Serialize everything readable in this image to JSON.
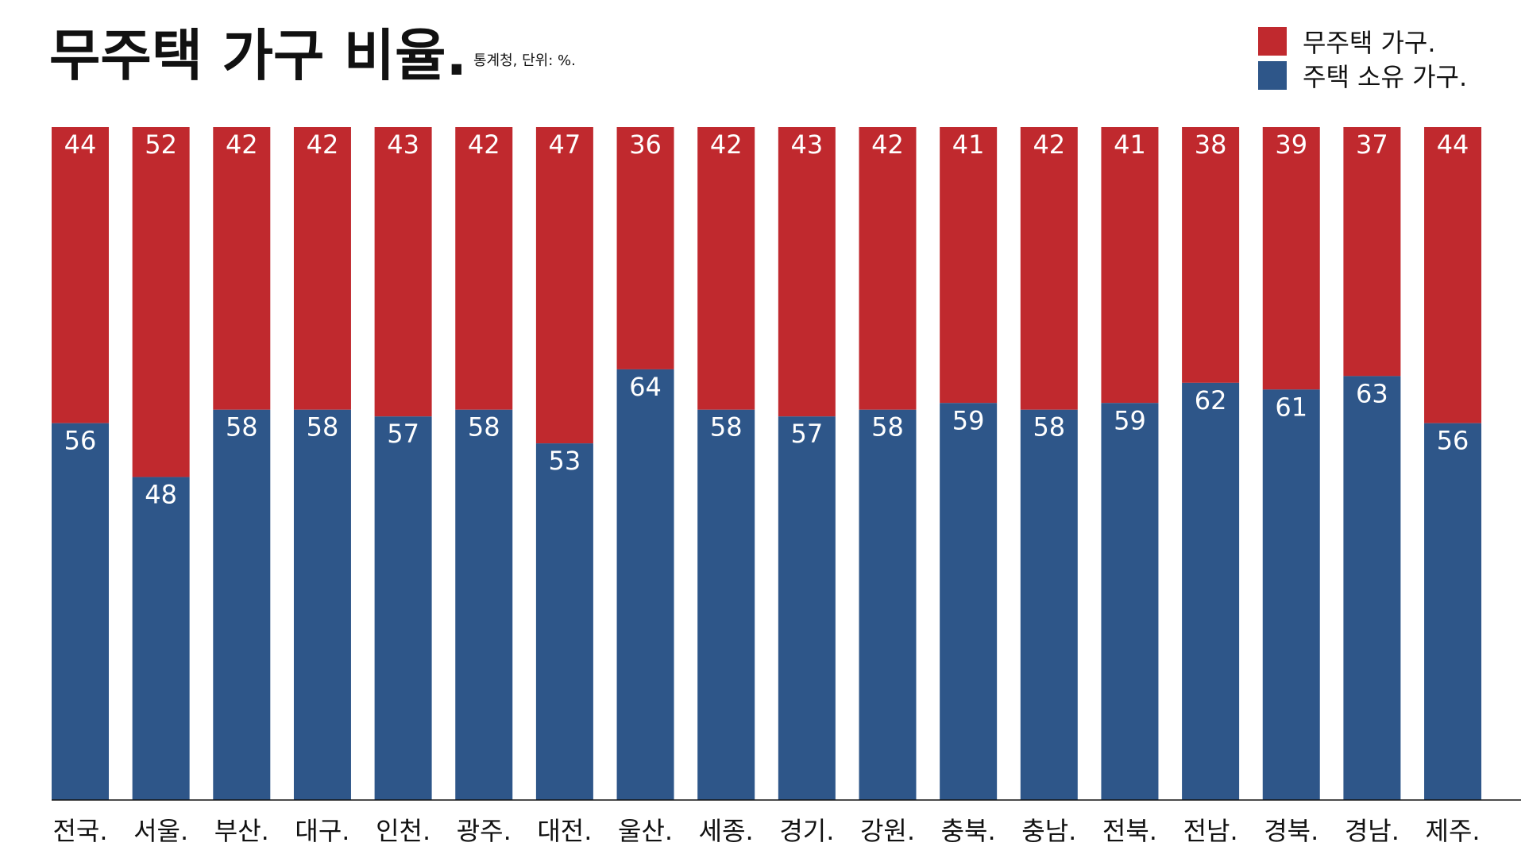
{
  "chart_data": {
    "type": "bar",
    "stacked": true,
    "title": "무주택 가구 비율.",
    "subtitle": "통계청, 단위: %.",
    "categories": [
      "전국.",
      "서울.",
      "부산.",
      "대구.",
      "인천.",
      "광주.",
      "대전.",
      "울산.",
      "세종.",
      "경기.",
      "강원.",
      "충북.",
      "충남.",
      "전북.",
      "전남.",
      "경북.",
      "경남.",
      "제주."
    ],
    "series": [
      {
        "name": "주택 소유 가구.",
        "color": "#2e5689",
        "values": [
          56,
          48,
          58,
          58,
          57,
          58,
          53,
          64,
          58,
          57,
          58,
          59,
          58,
          59,
          62,
          61,
          63,
          56
        ]
      },
      {
        "name": "무주택 가구.",
        "color": "#c0292e",
        "values": [
          44,
          52,
          42,
          42,
          43,
          42,
          47,
          36,
          42,
          43,
          42,
          41,
          42,
          41,
          38,
          39,
          37,
          44
        ]
      }
    ],
    "ylim": [
      0,
      100
    ],
    "legend": "top-right",
    "grid": false
  }
}
